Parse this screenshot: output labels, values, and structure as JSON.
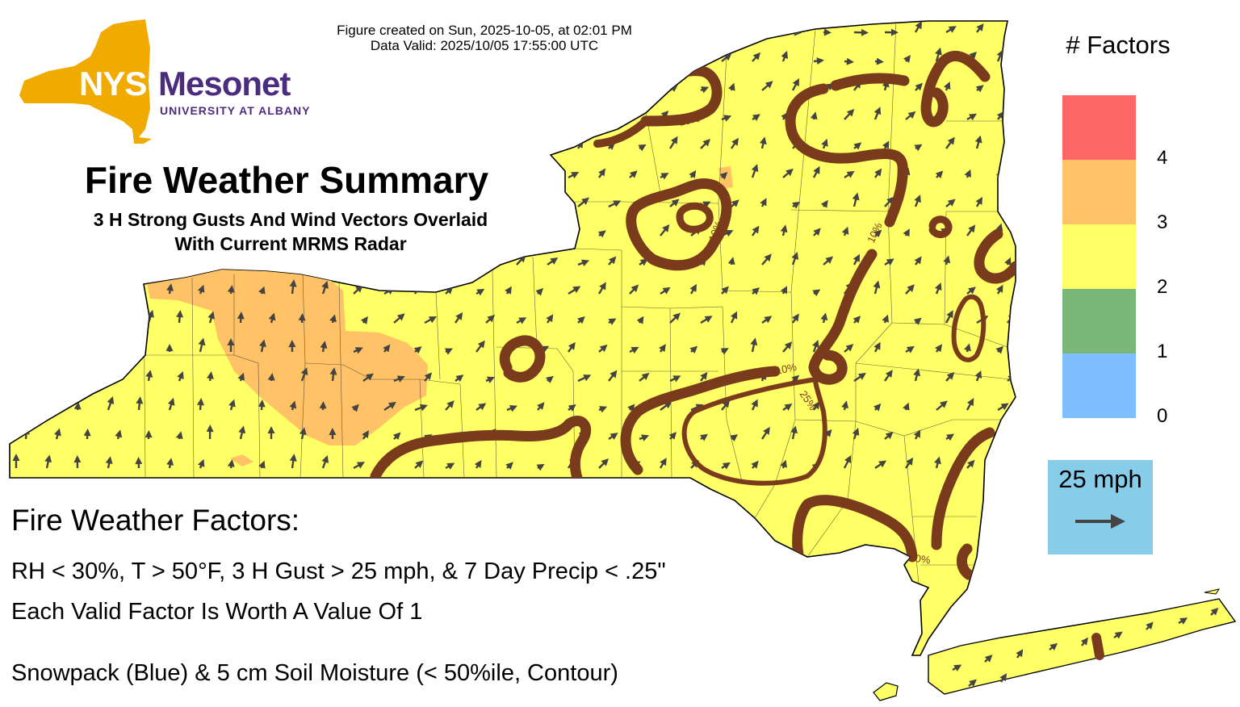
{
  "header": {
    "created": "Figure created on Sun, 2025-10-05, at 02:01 PM",
    "valid": "Data Valid: 2025/10/05 17:55:00 UTC"
  },
  "logo": {
    "nys": "NYS",
    "mesonet": "Mesonet",
    "university": "UNIVERSITY AT ALBANY",
    "color_gold": "#f0aa00",
    "color_purple": "#4b2c7f"
  },
  "title": "Fire Weather Summary",
  "subtitle_line1": "3 H Strong Gusts And Wind Vectors Overlaid",
  "subtitle_line2": "With Current MRMS Radar",
  "factors": {
    "heading": "Fire Weather Factors:",
    "line1": "RH < 30%, T > 50°F, 3 H Gust > 25 mph, & 7 Day Precip < .25\"",
    "line2": "Each Valid Factor Is Worth A Value Of 1",
    "line3": "Snowpack (Blue) & 5 cm Soil Moisture (< 50%ile, Contour)"
  },
  "legend": {
    "title": "# Factors",
    "items": [
      {
        "value": "4",
        "color": "#ff6666"
      },
      {
        "value": "3",
        "color": "#ffc266"
      },
      {
        "value": "2",
        "color": "#ffff66"
      },
      {
        "value": "1",
        "color": "#7ab87a"
      },
      {
        "value": "0",
        "color": "#7fbfff"
      }
    ]
  },
  "vector_scale": {
    "label": "25 mph",
    "color": "#87cdea"
  },
  "map": {
    "base_color": "#ffff66",
    "factor3_color": "#ffc266",
    "contour_color": "#7a3b1c",
    "arrow_color": "#444444",
    "contour_labels": [
      "10%",
      "10%",
      "10%",
      "10%",
      "10%",
      "25%",
      "10%",
      "10%"
    ]
  }
}
